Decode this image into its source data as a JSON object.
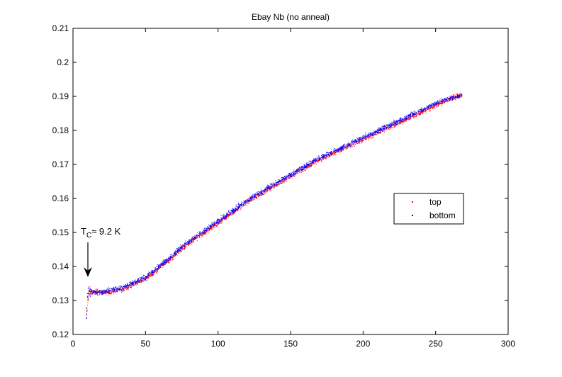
{
  "chart_data": {
    "type": "scatter",
    "title": "Ebay Nb (no anneal)",
    "xlabel": "",
    "ylabel": "",
    "xlim": [
      0,
      300
    ],
    "ylim": [
      0.12,
      0.21
    ],
    "xticks": [
      0,
      50,
      100,
      150,
      200,
      250,
      300
    ],
    "yticks": [
      0.12,
      0.13,
      0.14,
      0.15,
      0.16,
      0.17,
      0.18,
      0.19,
      0.2,
      0.21
    ],
    "xtick_labels": [
      "0",
      "50",
      "100",
      "150",
      "200",
      "250",
      "300"
    ],
    "ytick_labels": [
      "0.12",
      "0.13",
      "0.14",
      "0.15",
      "0.16",
      "0.17",
      "0.18",
      "0.19",
      "0.2",
      "0.21"
    ],
    "grid": false,
    "legend_position": "right",
    "series": [
      {
        "name": "top",
        "color": "#ff0000",
        "x": [
          9.2,
          9.5,
          10,
          10.5,
          11,
          15,
          20,
          25,
          30,
          35,
          40,
          45,
          50,
          55,
          60,
          65,
          70,
          75,
          80,
          85,
          90,
          95,
          100,
          105,
          110,
          115,
          120,
          125,
          130,
          135,
          140,
          145,
          150,
          155,
          160,
          165,
          170,
          175,
          180,
          185,
          190,
          195,
          200,
          205,
          210,
          215,
          220,
          225,
          230,
          235,
          240,
          245,
          250,
          255,
          260,
          265,
          268
        ],
        "y": [
          0.126,
          0.128,
          0.131,
          0.132,
          0.1325,
          0.1325,
          0.1325,
          0.1325,
          0.133,
          0.1335,
          0.1345,
          0.1355,
          0.1365,
          0.138,
          0.14,
          0.1415,
          0.1435,
          0.1455,
          0.147,
          0.1485,
          0.15,
          0.1515,
          0.153,
          0.1545,
          0.156,
          0.1575,
          0.159,
          0.1605,
          0.1615,
          0.163,
          0.164,
          0.1655,
          0.1665,
          0.168,
          0.169,
          0.1705,
          0.1715,
          0.1725,
          0.1735,
          0.1745,
          0.1755,
          0.1765,
          0.1775,
          0.1785,
          0.1795,
          0.1805,
          0.1815,
          0.1825,
          0.1835,
          0.1845,
          0.1855,
          0.1865,
          0.1875,
          0.1885,
          0.1895,
          0.19,
          0.1905
        ]
      },
      {
        "name": "bottom",
        "color": "#0000ff",
        "x": [
          9.2,
          9.5,
          10,
          10.5,
          11,
          15,
          20,
          25,
          30,
          35,
          40,
          45,
          50,
          55,
          60,
          65,
          70,
          75,
          80,
          85,
          90,
          95,
          100,
          105,
          110,
          115,
          120,
          125,
          130,
          135,
          140,
          145,
          150,
          155,
          160,
          165,
          170,
          175,
          180,
          185,
          190,
          195,
          200,
          205,
          210,
          215,
          220,
          225,
          230,
          235,
          240,
          245,
          250,
          255,
          260,
          265,
          268
        ],
        "y": [
          0.125,
          0.128,
          0.132,
          0.1335,
          0.133,
          0.1325,
          0.1325,
          0.133,
          0.1335,
          0.134,
          0.135,
          0.136,
          0.137,
          0.1385,
          0.1405,
          0.142,
          0.144,
          0.146,
          0.1475,
          0.149,
          0.1505,
          0.152,
          0.1535,
          0.155,
          0.1565,
          0.158,
          0.1595,
          0.161,
          0.162,
          0.1635,
          0.1645,
          0.166,
          0.167,
          0.1685,
          0.1695,
          0.171,
          0.172,
          0.173,
          0.174,
          0.175,
          0.176,
          0.177,
          0.178,
          0.179,
          0.18,
          0.181,
          0.182,
          0.183,
          0.184,
          0.185,
          0.186,
          0.187,
          0.188,
          0.189,
          0.1895,
          0.19,
          0.1905
        ]
      }
    ],
    "annotation": {
      "main": "T",
      "sub": "C",
      "rest": "≈ 9.2 K",
      "arrow_from": [
        9.6,
        0.147
      ],
      "arrow_to": [
        9.6,
        0.137
      ]
    }
  }
}
